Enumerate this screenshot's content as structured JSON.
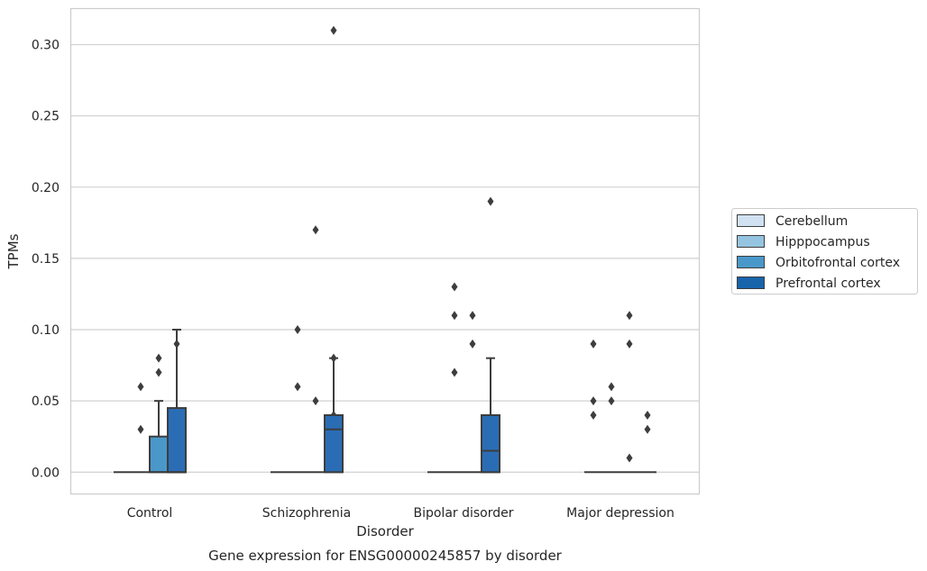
{
  "chart_data": {
    "type": "box",
    "xlabel": "Disorder",
    "ylabel": "TPMs",
    "caption": "Gene expression for ENSG00000245857 by disorder",
    "categories": [
      "Control",
      "Schizophrenia",
      "Bipolar disorder",
      "Major depression"
    ],
    "ylim": [
      -0.015,
      0.325
    ],
    "yticks": [
      "0.00",
      "0.05",
      "0.10",
      "0.15",
      "0.20",
      "0.25",
      "0.30"
    ],
    "grid": true,
    "legend_position": "right",
    "series": [
      {
        "name": "Cerebellum",
        "color": "#d0e1f2",
        "boxes": [
          {
            "q1": 0,
            "median": 0,
            "q3": 0,
            "whisker_low": 0,
            "whisker_high": 0,
            "outliers": []
          },
          {
            "q1": 0,
            "median": 0,
            "q3": 0,
            "whisker_low": 0,
            "whisker_high": 0,
            "outliers": []
          },
          {
            "q1": 0,
            "median": 0,
            "q3": 0,
            "whisker_low": 0,
            "whisker_high": 0,
            "outliers": []
          },
          {
            "q1": 0,
            "median": 0,
            "q3": 0,
            "whisker_low": 0,
            "whisker_high": 0,
            "outliers": [
              0.04,
              0.05,
              0.09
            ]
          }
        ]
      },
      {
        "name": "Hipppocampus",
        "color": "#94c4df",
        "boxes": [
          {
            "q1": 0,
            "median": 0,
            "q3": 0,
            "whisker_low": 0,
            "whisker_high": 0,
            "outliers": [
              0.03,
              0.06
            ]
          },
          {
            "q1": 0,
            "median": 0,
            "q3": 0,
            "whisker_low": 0,
            "whisker_high": 0,
            "outliers": [
              0.06,
              0.1
            ]
          },
          {
            "q1": 0,
            "median": 0,
            "q3": 0,
            "whisker_low": 0,
            "whisker_high": 0,
            "outliers": [
              0.07,
              0.11,
              0.13
            ]
          },
          {
            "q1": 0,
            "median": 0,
            "q3": 0,
            "whisker_low": 0,
            "whisker_high": 0,
            "outliers": [
              0.05,
              0.06
            ]
          }
        ]
      },
      {
        "name": "Orbitofrontal cortex",
        "color": "#4a98c9",
        "boxes": [
          {
            "q1": 0,
            "median": 0,
            "q3": 0.025,
            "whisker_low": 0,
            "whisker_high": 0.05,
            "outliers": [
              0.07,
              0.08
            ]
          },
          {
            "q1": 0,
            "median": 0,
            "q3": 0,
            "whisker_low": 0,
            "whisker_high": 0,
            "outliers": [
              0.05,
              0.17
            ]
          },
          {
            "q1": 0,
            "median": 0,
            "q3": 0,
            "whisker_low": 0,
            "whisker_high": 0,
            "outliers": [
              0.09,
              0.11
            ]
          },
          {
            "q1": 0,
            "median": 0,
            "q3": 0,
            "whisker_low": 0,
            "whisker_high": 0,
            "outliers": [
              0.01,
              0.09,
              0.11
            ]
          }
        ]
      },
      {
        "name": "Prefrontal cortex",
        "color": "#1764ab",
        "boxes": [
          {
            "q1": 0,
            "median": 0,
            "q3": 0.005,
            "whisker_low": 0,
            "whisker_high": 0.01,
            "outliers": [
              0.04,
              0.09
            ]
          },
          {
            "q1": 0,
            "median": 0,
            "q3": 0,
            "whisker_low": 0,
            "whisker_high": 0,
            "outliers": [
              0.04,
              0.08,
              0.31
            ]
          },
          {
            "q1": 0,
            "median": 0,
            "q3": 0,
            "whisker_low": 0,
            "whisker_high": 0,
            "outliers": []
          },
          {
            "q1": 0,
            "median": 0,
            "q3": 0,
            "whisker_low": 0,
            "whisker_high": 0,
            "outliers": [
              0.03,
              0.04
            ]
          }
        ]
      }
    ],
    "extra_boxes": [
      {
        "category": "Control",
        "color": "#2a6db5",
        "q1": 0,
        "median": 0,
        "q3": 0.045,
        "whisker_low": 0,
        "whisker_high": 0.1
      },
      {
        "category": "Schizophrenia",
        "color": "#2a6db5",
        "q1": 0,
        "median": 0.03,
        "q3": 0.04,
        "whisker_low": 0,
        "whisker_high": 0.08
      },
      {
        "category": "Bipolar disorder",
        "color": "#2a6db5",
        "q1": 0,
        "median": 0.015,
        "q3": 0.04,
        "whisker_low": 0,
        "whisker_high": 0.08,
        "outliers": [
          0.19
        ]
      }
    ]
  }
}
